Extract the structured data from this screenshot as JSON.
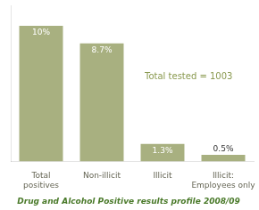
{
  "chart_data": {
    "type": "bar",
    "title": "Drug and Alcohol Positive results profile 2008/09",
    "categories": [
      "Total\npositives",
      "Non-illicit",
      "Illicit",
      "Illicit:\nEmployees only"
    ],
    "values": [
      10.0,
      8.7,
      1.3,
      0.5
    ],
    "value_labels": [
      "10%",
      "8.7%",
      "1.3%",
      "0.5%"
    ],
    "data_labels": true,
    "color": "#a8b080",
    "annotation": "Total tested = 1003",
    "ylim": [
      0,
      11.5
    ],
    "tick_labels": "x",
    "grid": false,
    "legend": false
  }
}
